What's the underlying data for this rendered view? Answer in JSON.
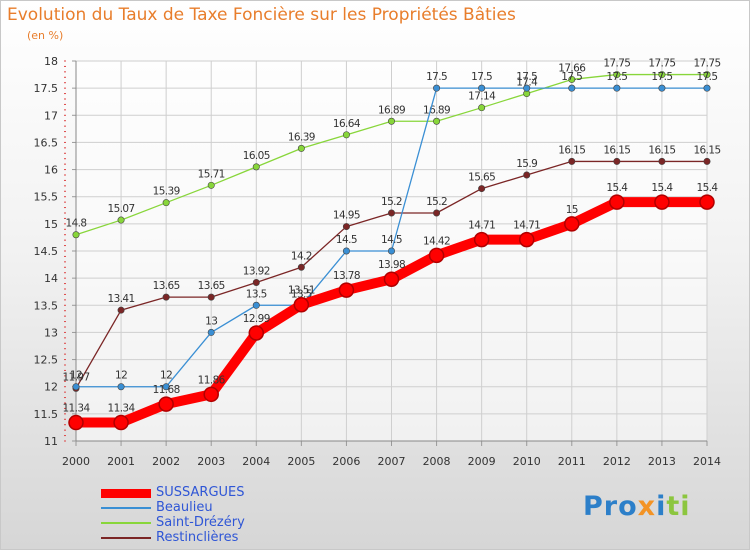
{
  "header": {
    "title": "Evolution du Taux de Taxe Foncière sur les Propriétés Bâties",
    "unit": "(en %)"
  },
  "logo": {
    "part1": "Pro",
    "part2": "x",
    "part3": "i",
    "part4": "ti"
  },
  "chart_data": {
    "type": "line",
    "title": "Evolution du Taux de Taxe Foncière sur les Propriétés Bâties",
    "ylabel": "(en %)",
    "xlabel": "",
    "x": [
      "2000",
      "2001",
      "2002",
      "2003",
      "2004",
      "2005",
      "2006",
      "2007",
      "2008",
      "2009",
      "2010",
      "2011",
      "2012",
      "2013",
      "2014"
    ],
    "ylim": [
      11,
      18
    ],
    "yticks": [
      "11",
      "11.5",
      "12",
      "12.5",
      "13",
      "13.5",
      "14",
      "14.5",
      "15",
      "15.5",
      "16",
      "16.5",
      "17",
      "17.5",
      "18"
    ],
    "grid": true,
    "legend_position": "bottom-left",
    "series": [
      {
        "name": "SUSSARGUES",
        "color": "#ff0000",
        "values": [
          11.34,
          11.34,
          11.68,
          11.86,
          12.99,
          13.51,
          13.78,
          13.98,
          14.42,
          14.71,
          14.71,
          15,
          15.4,
          15.4,
          15.4
        ],
        "labels": [
          "11.34",
          "11.34",
          "11.68",
          "11.86",
          "12.99",
          "13.51",
          "13.78",
          "13.98",
          "14.42",
          "14.71",
          "14.71",
          "15",
          "15.4",
          "15.4",
          "15.4"
        ]
      },
      {
        "name": "Beaulieu",
        "color": "#3a8fd4",
        "values": [
          12,
          12,
          12,
          13,
          13.5,
          13.5,
          14.5,
          14.5,
          17.5,
          17.5,
          17.5,
          17.5,
          17.5,
          17.5,
          17.5
        ],
        "labels": [
          "12",
          "12",
          "12",
          "13",
          "13.5",
          "13.5",
          "14.5",
          "14.5",
          "17.5",
          "17.5",
          "17.5",
          "17.5",
          "17.5",
          "17.5",
          "17.5"
        ]
      },
      {
        "name": "Saint-Drézéry",
        "color": "#88d63a",
        "values": [
          14.8,
          15.07,
          15.39,
          15.71,
          16.05,
          16.39,
          16.64,
          16.89,
          16.89,
          17.14,
          17.4,
          17.66,
          17.75,
          17.75,
          17.75
        ],
        "labels": [
          "14.8",
          "15.07",
          "15.39",
          "15.71",
          "16.05",
          "16.39",
          "16.64",
          "16.89",
          "16.89",
          "17.14",
          "17.4",
          "17.66",
          "17.75",
          "17.75",
          "17.75"
        ]
      },
      {
        "name": "Restinclières",
        "color": "#7b2626",
        "values": [
          11.97,
          13.41,
          13.65,
          13.65,
          13.92,
          14.2,
          14.95,
          15.2,
          15.2,
          15.65,
          15.9,
          16.15,
          16.15,
          16.15,
          16.15
        ],
        "labels": [
          "11.97",
          "13.41",
          "13.65",
          "13.65",
          "13.92",
          "14.2",
          "14.95",
          "15.2",
          "15.2",
          "15.65",
          "15.9",
          "16.15",
          "16.15",
          "16.15",
          "16.15"
        ]
      }
    ]
  }
}
